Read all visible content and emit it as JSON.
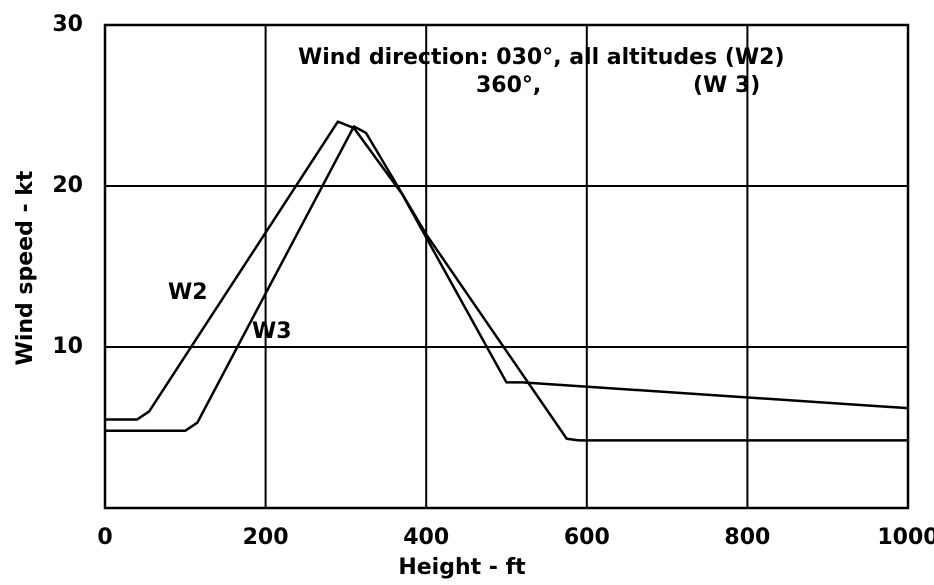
{
  "chart_data": {
    "type": "line",
    "xlabel": "Height - ft",
    "ylabel": "Wind speed  -  kt",
    "annotations": [
      "Wind direction: 030°, all altitudes (W2)",
      "360°,",
      "(W 3)"
    ],
    "series": [
      {
        "name": "W2",
        "color": "#000000",
        "x": [
          0,
          40,
          55,
          290,
          310,
          370,
          420,
          500,
          520,
          1000
        ],
        "values": [
          5.5,
          5.5,
          6,
          24,
          23.6,
          19.5,
          15,
          7.8,
          7.8,
          6.2
        ]
      },
      {
        "name": "W3",
        "color": "#000000",
        "x": [
          0,
          100,
          115,
          310,
          325,
          400,
          575,
          590,
          1000
        ],
        "values": [
          4.8,
          4.8,
          5.3,
          23.7,
          23.3,
          17,
          4.3,
          4.2,
          4.2
        ]
      }
    ],
    "xlim": [
      0,
      1000
    ],
    "xticks": [
      0,
      200,
      400,
      600,
      800,
      1000
    ],
    "ylim": [
      0,
      30
    ],
    "yticks": [
      10,
      20,
      30
    ],
    "grid": true
  }
}
